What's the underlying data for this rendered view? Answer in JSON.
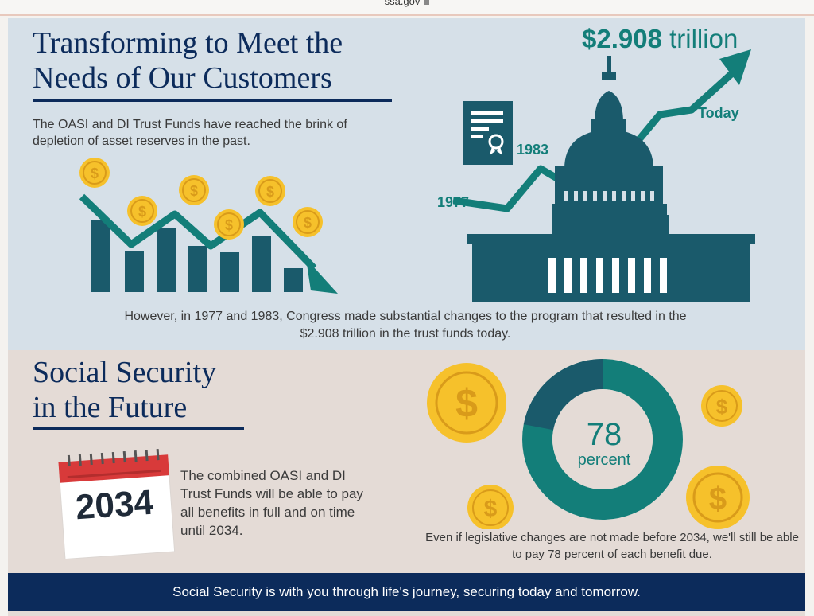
{
  "browser": {
    "url": "ssa.gov"
  },
  "section1": {
    "title_line1": "Transforming to Meet the",
    "title_line2": "Needs of Our Customers",
    "intro": "The OASI and DI Trust Funds have reached the brink of depletion of asset reserves in the past.",
    "trillion_amount": "$2.908",
    "trillion_word": "trillion",
    "label_today": "Today",
    "label_1983": "1983",
    "label_1977": "1977",
    "however": "However, in 1977 and 1983, Congress made substantial changes to the program that resulted in the $2.908 trillion in the trust funds today."
  },
  "section2": {
    "title_line1": "Social Security",
    "title_line2": "in the Future",
    "year": "2034",
    "combined": "The combined OASI and DI Trust Funds will be able to pay all benefits in full and on time until 2034.",
    "percent_value": "78",
    "percent_word": "percent",
    "percent_fraction": 0.78,
    "even_if": "Even if legislative changes are not made before 2034, we'll still be able to pay 78 percent of each benefit due."
  },
  "footer": {
    "text": "Social Security is with you through life's journey, securing today and tomorrow."
  },
  "colors": {
    "navy": "#0c2b5b",
    "teal": "#137e79",
    "dark_teal": "#1a5a6b",
    "gold": "#f6c12b",
    "top_bg": "#d6e0e8",
    "mid_bg": "#e4dbd6"
  },
  "icons": [
    "dollar-coin-icon",
    "capitol-building-icon",
    "certificate-icon",
    "calendar-icon",
    "trend-up-arrow-icon",
    "trend-down-arrow-icon",
    "donut-chart-icon"
  ]
}
